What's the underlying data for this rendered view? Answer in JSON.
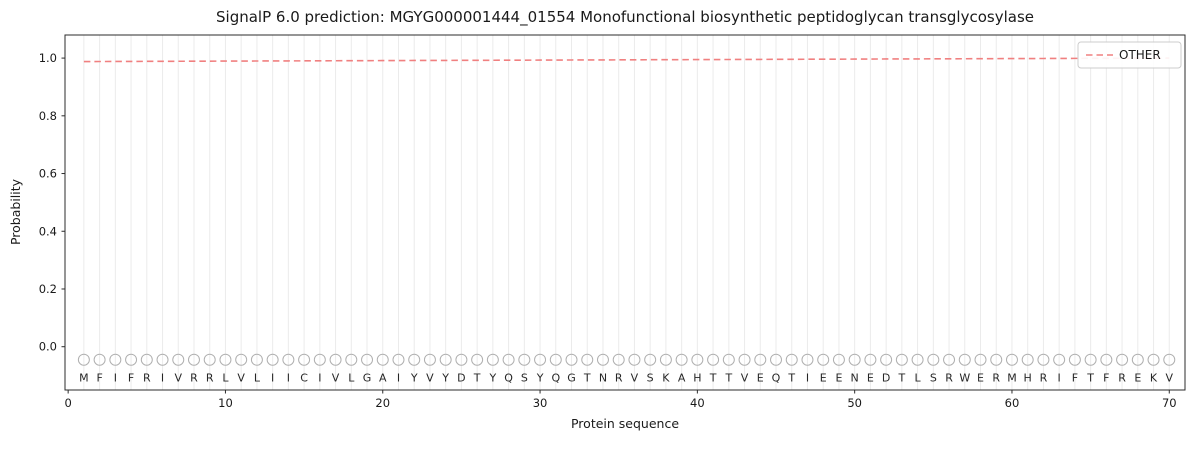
{
  "chart_data": {
    "type": "line",
    "title": "SignalP 6.0 prediction: MGYG000001444_01554 Monofunctional biosynthetic peptidoglycan transglycosylase",
    "xlabel": "Protein sequence",
    "ylabel": "Probability",
    "xlim": [
      -0.2,
      71
    ],
    "ylim": [
      -0.15,
      1.08
    ],
    "xticks": [
      0,
      10,
      20,
      30,
      40,
      50,
      60,
      70
    ],
    "yticks": [
      0.0,
      0.2,
      0.4,
      0.6,
      0.8,
      1.0
    ],
    "grid": "vertical-per-residue",
    "legend_position": "upper right",
    "sequence": "MFIFRIVRRLVLIICIVLGAIYVYDTYQSYQGTNRVSKAHTTVEQTIEENEDTLSRWERMHRIFTFREKV",
    "residue_markers": {
      "shape": "circle",
      "y": -0.045,
      "color": "#b0b0b0"
    },
    "letters_y": -0.107,
    "series": [
      {
        "name": "OTHER",
        "color": "#f08080",
        "dashed": true,
        "x_start": 1,
        "values": [
          0.988,
          0.9882,
          0.9883,
          0.9885,
          0.9887,
          0.9889,
          0.989,
          0.9892,
          0.9894,
          0.9896,
          0.9897,
          0.9899,
          0.9901,
          0.9903,
          0.9904,
          0.9906,
          0.9908,
          0.991,
          0.9911,
          0.9913,
          0.9915,
          0.9917,
          0.9918,
          0.992,
          0.9922,
          0.9923,
          0.9925,
          0.9927,
          0.9929,
          0.993,
          0.9932,
          0.9934,
          0.9936,
          0.9937,
          0.9939,
          0.9941,
          0.9943,
          0.9944,
          0.9946,
          0.9948,
          0.995,
          0.9951,
          0.9953,
          0.9955,
          0.9957,
          0.9958,
          0.996,
          0.9962,
          0.9963,
          0.9965,
          0.9967,
          0.9969,
          0.997,
          0.9972,
          0.9974,
          0.9976,
          0.9977,
          0.9979,
          0.9981,
          0.9983,
          0.9984,
          0.9986,
          0.9988,
          0.999,
          0.9991,
          0.9993,
          0.9995,
          0.9997,
          0.9998,
          1.0
        ]
      }
    ]
  }
}
